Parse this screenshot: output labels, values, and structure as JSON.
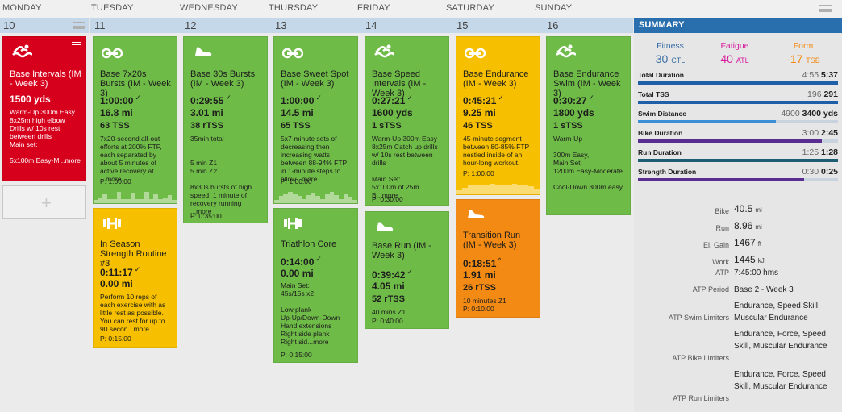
{
  "days": [
    "MONDAY",
    "TUESDAY",
    "WEDNESDAY",
    "THURSDAY",
    "FRIDAY",
    "SATURDAY",
    "SUNDAY"
  ],
  "dates": [
    "10",
    "11",
    "12",
    "13",
    "14",
    "15",
    "16"
  ],
  "summary_title": "SUMMARY",
  "fitness": {
    "label": "Fitness",
    "value": "30",
    "unit": "CTL",
    "color": "#3a6ea5"
  },
  "fatigue": {
    "label": "Fatigue",
    "value": "40",
    "unit": "ATL",
    "color": "#d81b9d"
  },
  "form": {
    "label": "Form",
    "value": "-17",
    "unit": "TSB",
    "color": "#f28a13"
  },
  "metrics": [
    {
      "label": "Total Duration",
      "planned": "4:55",
      "actual": "5:37",
      "pct": 1.0,
      "color": "#1f5fa8"
    },
    {
      "label": "Total TSS",
      "planned": "196",
      "actual": "291",
      "pct": 1.0,
      "color": "#1f5fa8"
    },
    {
      "label": "Swim Distance",
      "planned": "4900",
      "actual": "3400 yds",
      "pct": 0.69,
      "color": "#3a8fd6"
    },
    {
      "label": "Bike Duration",
      "planned": "3:00",
      "actual": "2:45",
      "pct": 0.92,
      "color": "#5a2d91"
    },
    {
      "label": "Run Duration",
      "planned": "1:25",
      "actual": "1:28",
      "pct": 1.0,
      "color": "#1e5e75"
    },
    {
      "label": "Strength Duration",
      "planned": "0:30",
      "actual": "0:25",
      "pct": 0.83,
      "color": "#5a2d91"
    }
  ],
  "stats": [
    {
      "label": "Bike",
      "value": "40.5",
      "unit": "mi"
    },
    {
      "label": "Run",
      "value": "8.96",
      "unit": "mi"
    },
    {
      "label": "El. Gain",
      "value": "1467",
      "unit": "ft"
    },
    {
      "label": "Work",
      "value": "1445",
      "unit": "kJ"
    }
  ],
  "atp": {
    "label": "ATP",
    "value": "7:45:00 hms"
  },
  "atp_period": {
    "label": "ATP Period",
    "value": "Base 2 - Week 3"
  },
  "limiters": [
    {
      "label": "ATP Swim Limiters",
      "value": "Endurance, Speed Skill, Muscular Endurance"
    },
    {
      "label": "ATP Bike Limiters",
      "value": "Endurance, Force, Speed Skill, Muscular Endurance"
    },
    {
      "label": "ATP Run Limiters",
      "value": "Endurance, Force, Speed Skill, Muscular Endurance"
    }
  ],
  "workouts": {
    "mon_swim": {
      "title": "Base Intervals (IM - Week 3)",
      "dist": "1500 yds",
      "desc": "Warm-Up 300m Easy 8x25m high elbow Drills w/ 10s rest between drills\nMain set:\n\n5x100m Easy-M",
      "more": "...more",
      "icon": "swim-icon"
    },
    "tue_bike": {
      "title": "Base 7x20s Bursts (IM - Week 3)",
      "dur": "1:00:00",
      "dist": "16.8 mi",
      "tss": "63 TSS",
      "desc": "7x20-second all-out efforts at 200% FTP, each separated by about 5 minutes of active recovery at ",
      "more": "...more",
      "planned": "P: 1:00:00",
      "icon": "bike-icon"
    },
    "tue_strength": {
      "title": "In Season Strength Routine #3",
      "dur": "0:11:17",
      "dist": "0.00 mi",
      "desc": "Perform 10 reps of each exercise with as little rest as possible. You can rest for up to 90 secon",
      "more": "...more",
      "planned": "P: 0:15:00",
      "icon": "strength-icon"
    },
    "wed_run": {
      "title": "Base 30s Bursts (IM - Week 3)",
      "dur": "0:29:55",
      "dist": "3.01 mi",
      "tss": "38 rTSS",
      "desc": "35min total\n\n\n5 min Z1\n5 min Z2\n\n8x30s bursts of high speed, 1 minute of recovery running ",
      "more": "...more",
      "planned": "P: 0:35:00",
      "icon": "run-icon"
    },
    "thu_bike": {
      "title": "Base Sweet Spot (IM - Week 3)",
      "dur": "1:00:00",
      "dist": "14.5 mi",
      "tss": "65 TSS",
      "desc": "5x7-minute sets of decreasing then increasing watts between 88-94% FTP in 1-minute steps to allow",
      "more": "...more",
      "planned": "P: 1:00:00",
      "icon": "bike-icon"
    },
    "thu_strength": {
      "title": "Triathlon Core",
      "dur": "0:14:00",
      "dist": "0.00 mi",
      "desc": "Main Set:\n45s/15s x2\n\nLow plank\nUp-Up/Down-Down\nHand extensions\nRight side plank\nRight sid",
      "more": "...more",
      "planned": "P: 0:15:00",
      "icon": "strength-icon"
    },
    "fri_swim": {
      "title": "Base Speed Intervals (IM - Week 3)",
      "dur": "0:27:21",
      "dist": "1600 yds",
      "tss": "1 sTSS",
      "desc": "Warm-Up 300m Easy 8x25m Catch up drills w/ 10s rest between drills\n\nMain Set:\n5x100m of 25m B",
      "more": "...more",
      "planned": "P: 0:30:00",
      "icon": "swim-icon"
    },
    "fri_run": {
      "title": "Base Run (IM - Week 3)",
      "dur": "0:39:42",
      "dist": "4.05 mi",
      "tss": "52 rTSS",
      "desc": "40 mins Z1",
      "planned": "P: 0:40:00",
      "icon": "run-icon"
    },
    "sat_bike": {
      "title": "Base Endurance (IM - Week 3)",
      "dur": "0:45:21",
      "dist": "9.25 mi",
      "tss": "46 TSS",
      "desc": "45-minute segment between 80-85% FTP nestled inside of an hour-long workout.",
      "planned": "P: 1:00:00",
      "icon": "bike-icon"
    },
    "sat_run": {
      "title": "Transition Run (IM - Week 3)",
      "dur": "0:18:51",
      "dist": "1.91 mi",
      "tss": "26 rTSS",
      "desc": "10 minutes Z1",
      "planned": "P: 0:10:00",
      "icon": "run-icon"
    },
    "sun_swim": {
      "title": "Base Endurance Swim (IM - Week 3)",
      "dur": "0:30:27",
      "dist": "1800 yds",
      "tss": "1 sTSS",
      "desc": "Warm-Up\n\n300m Easy,\nMain Set:\n1200m Easy-Moderate\n\nCool-Down 300m easy",
      "icon": "swim-icon"
    }
  }
}
